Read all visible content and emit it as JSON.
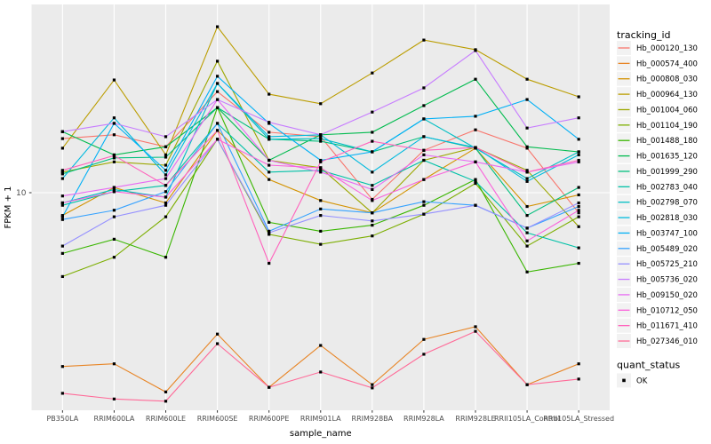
{
  "chart_data": {
    "type": "line",
    "title": "",
    "xlabel": "sample_name",
    "ylabel": "FPKM + 1",
    "y_scale": "log10",
    "y_ticks": [
      {
        "value": 10,
        "label": "10"
      }
    ],
    "legend_title": "tracking_id",
    "legend_position": "right",
    "quant_legend_title": "quant_status",
    "quant_legend_items": [
      {
        "label": "OK",
        "marker": "black-square"
      }
    ],
    "panel_bg": "#EBEBEB",
    "grid_color": "#FFFFFF",
    "tick_label_color": "#4D4D4D",
    "point_color": "#000000",
    "categories": [
      "PB350LA",
      "RRIM600LA",
      "RRIM600LE",
      "RRIM600SE",
      "RRIM600PE",
      "RRIM901LA",
      "RRIM928BA",
      "RRIM928LA",
      "RRIM928LE",
      "RRII105LA_Control",
      "RRII105LA_Stressed"
    ],
    "series": [
      {
        "name": "Hb_000120_130",
        "color": "#F8766D",
        "values": [
          16.5,
          17.1,
          15.3,
          25.5,
          17.5,
          16.8,
          9.4,
          14.8,
          17.9,
          15.1,
          8.3
        ]
      },
      {
        "name": "Hb_000574_400",
        "color": "#E88526",
        "values": [
          2.0,
          2.05,
          1.58,
          2.7,
          1.65,
          2.43,
          1.69,
          2.57,
          2.89,
          1.69,
          2.05
        ]
      },
      {
        "name": "Hb_000808_030",
        "color": "#D39200",
        "values": [
          8.1,
          10.5,
          9.1,
          17.8,
          11.3,
          9.3,
          8.3,
          11.3,
          15.1,
          8.8,
          9.8
        ]
      },
      {
        "name": "Hb_000964_130",
        "color": "#BB9D00",
        "values": [
          15.1,
          28.4,
          14.2,
          46.5,
          24.9,
          22.8,
          30.3,
          41.1,
          37.6,
          28.6,
          24.3
        ]
      },
      {
        "name": "Hb_001004_060",
        "color": "#9CA700",
        "values": [
          12.1,
          13.3,
          12.9,
          33.8,
          13.5,
          12.6,
          8.3,
          13.5,
          15.2,
          12.3,
          7.3
        ]
      },
      {
        "name": "Hb_001104_190",
        "color": "#7CAE00",
        "values": [
          4.6,
          5.5,
          8.0,
          16.4,
          6.8,
          6.2,
          6.7,
          8.2,
          10.9,
          6.1,
          8.0
        ]
      },
      {
        "name": "Hb_001488_180",
        "color": "#39B600",
        "values": [
          5.7,
          6.5,
          5.5,
          22.0,
          7.6,
          7.0,
          7.4,
          8.9,
          11.3,
          4.8,
          5.2
        ]
      },
      {
        "name": "Hb_001635_120",
        "color": "#00BB4E",
        "values": [
          17.6,
          14.2,
          15.3,
          22.0,
          13.5,
          17.1,
          17.5,
          22.4,
          28.6,
          15.3,
          14.6
        ]
      },
      {
        "name": "Hb_001999_290",
        "color": "#00BF7D",
        "values": [
          11.9,
          13.8,
          13.9,
          22.0,
          16.4,
          16.1,
          14.6,
          16.8,
          15.1,
          8.1,
          10.5
        ]
      },
      {
        "name": "Hb_002783_040",
        "color": "#00C1A7",
        "values": [
          8.9,
          10.1,
          10.7,
          19.0,
          12.1,
          12.3,
          10.7,
          13.5,
          11.1,
          6.9,
          6.0
        ]
      },
      {
        "name": "Hb_002798_070",
        "color": "#00BFC4",
        "values": [
          9.1,
          10.3,
          9.6,
          27.5,
          16.4,
          16.5,
          14.6,
          19.8,
          15.1,
          11.4,
          14.6
        ]
      },
      {
        "name": "Hb_002818_030",
        "color": "#00BADE",
        "values": [
          11.4,
          20.0,
          11.8,
          27.5,
          16.8,
          17.1,
          12.1,
          16.8,
          15.2,
          11.1,
          14.2
        ]
      },
      {
        "name": "Hb_003747_100",
        "color": "#00B0F6",
        "values": [
          8.0,
          19.0,
          12.3,
          29.4,
          19.0,
          13.5,
          14.6,
          19.8,
          20.3,
          23.7,
          16.4
        ]
      },
      {
        "name": "Hb_005489_020",
        "color": "#35A2FF",
        "values": [
          7.8,
          8.5,
          10.1,
          19.0,
          7.0,
          8.6,
          8.3,
          9.2,
          8.9,
          7.2,
          8.8
        ]
      },
      {
        "name": "Hb_005725_210",
        "color": "#9590FF",
        "values": [
          6.1,
          8.0,
          8.9,
          16.4,
          6.9,
          8.1,
          7.7,
          8.2,
          8.9,
          7.2,
          9.1
        ]
      },
      {
        "name": "Hb_005736_020",
        "color": "#C77CFF",
        "values": [
          17.6,
          19.0,
          16.8,
          23.7,
          19.2,
          17.1,
          21.1,
          26.4,
          37.3,
          18.2,
          20.0
        ]
      },
      {
        "name": "Hb_009150_020",
        "color": "#E76BF3",
        "values": [
          9.7,
          10.5,
          11.4,
          23.7,
          13.5,
          12.1,
          10.3,
          14.2,
          13.3,
          12.1,
          13.3
        ]
      },
      {
        "name": "Hb_010712_050",
        "color": "#FA62DB",
        "values": [
          9.1,
          10.1,
          9.6,
          16.4,
          12.9,
          12.6,
          9.3,
          11.3,
          13.3,
          6.4,
          8.5
        ]
      },
      {
        "name": "Hb_011671_410",
        "color": "#FF62BC",
        "values": [
          12.3,
          14.1,
          10.7,
          17.8,
          5.2,
          13.3,
          16.1,
          14.8,
          15.2,
          12.1,
          13.5
        ]
      },
      {
        "name": "Hb_027346_010",
        "color": "#FF6A98",
        "values": [
          1.56,
          1.48,
          1.45,
          2.47,
          1.65,
          1.9,
          1.64,
          2.24,
          2.77,
          1.69,
          1.78
        ]
      }
    ]
  }
}
